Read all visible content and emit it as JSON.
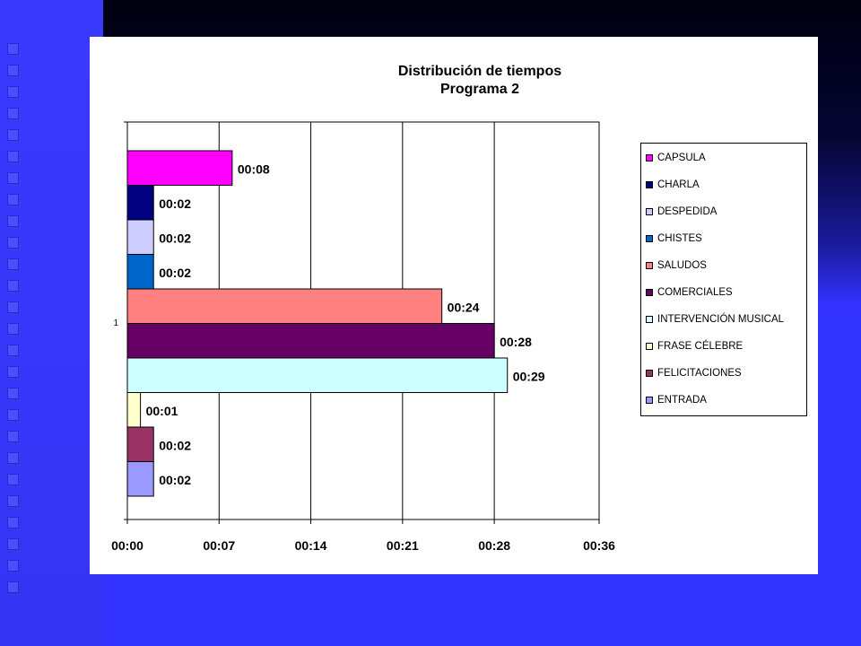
{
  "chart_data": {
    "type": "bar",
    "orientation": "horizontal",
    "title": [
      "Distribución de tiempos",
      "Programa 2"
    ],
    "category_label": "1",
    "xlim": [
      0,
      36
    ],
    "x_ticks": [
      0,
      7,
      14,
      21,
      28,
      36
    ],
    "x_tick_labels": [
      "00:00",
      "00:07",
      "00:14",
      "00:21",
      "00:28",
      "00:36"
    ],
    "grid": "vertical",
    "legend_position": "right",
    "series": [
      {
        "name": "CAPSULA",
        "value": 8,
        "label": "00:08",
        "color": "#ff00ff"
      },
      {
        "name": "CHARLA",
        "value": 2,
        "label": "00:02",
        "color": "#000080"
      },
      {
        "name": "DESPEDIDA",
        "value": 2,
        "label": "00:02",
        "color": "#ccccff"
      },
      {
        "name": "CHISTES",
        "value": 2,
        "label": "00:02",
        "color": "#0066cc"
      },
      {
        "name": "SALUDOS",
        "value": 24,
        "label": "00:24",
        "color": "#ff8080"
      },
      {
        "name": "COMERCIALES",
        "value": 28,
        "label": "00:28",
        "color": "#660066"
      },
      {
        "name": "INTERVENCIÓN MUSICAL",
        "value": 29,
        "label": "00:29",
        "color": "#ccffff"
      },
      {
        "name": "FRASE CÉLEBRE",
        "value": 1,
        "label": "00:01",
        "color": "#ffffcc"
      },
      {
        "name": "FELICITACIONES",
        "value": 2,
        "label": "00:02",
        "color": "#993366"
      },
      {
        "name": "ENTRADA",
        "value": 2,
        "label": "00:02",
        "color": "#9999ff"
      }
    ]
  }
}
